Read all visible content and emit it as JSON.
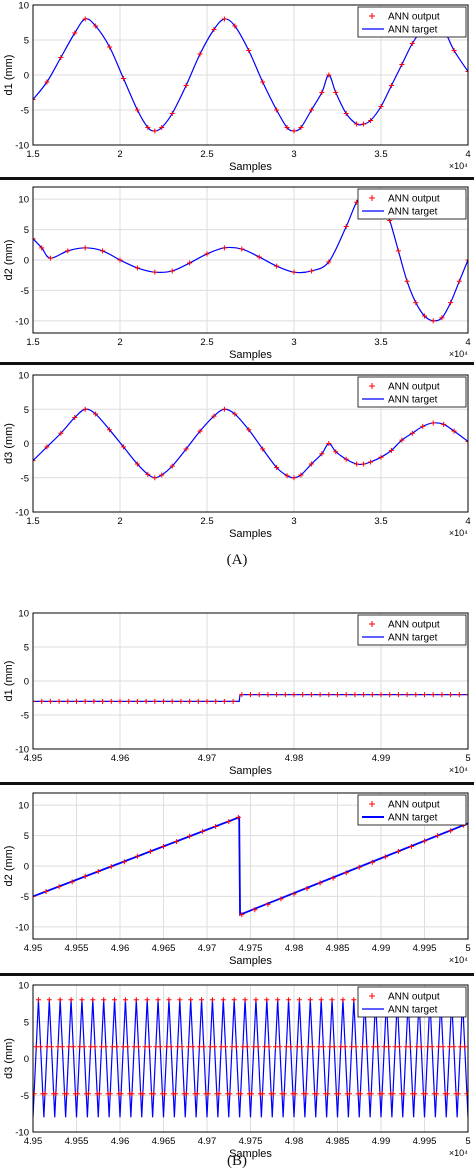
{
  "captions": {
    "a": "(A)",
    "b": "(B)"
  },
  "legend": {
    "output_label": "ANN output",
    "target_label": "ANN target"
  },
  "colors": {
    "output": "#ff0000",
    "target": "#0000ff",
    "grid": "#dedede",
    "axis": "#000000"
  },
  "chart_data": [
    {
      "type": "line",
      "xlabel": "Samples",
      "ylabel": "d1 (mm)",
      "xlim": [
        15000,
        40000
      ],
      "ylim": [
        -10,
        10
      ],
      "xticks": [
        "1.5",
        "2",
        "2.5",
        "3",
        "3.5",
        "4"
      ],
      "yticks": [
        "10",
        "5",
        "0",
        "-5",
        "-10"
      ],
      "x_exponent": "×10⁴",
      "legend_position": "top-right",
      "grid": true,
      "series": [
        {
          "name": "ANN target",
          "x": [
            15000,
            15800,
            16600,
            17400,
            18000,
            18600,
            19400,
            20200,
            21000,
            21600,
            22000,
            22400,
            23000,
            23800,
            24600,
            25400,
            26000,
            26600,
            27400,
            28200,
            29000,
            29600,
            30000,
            30400,
            31000,
            31600,
            32000,
            32400,
            33000,
            33600,
            34000,
            34400,
            35000,
            35600,
            36200,
            36800,
            37400,
            38000,
            38600,
            39200,
            40000
          ],
          "y": [
            -3.5,
            -1.0,
            2.5,
            6.0,
            8.0,
            7.0,
            4.0,
            -0.5,
            -5.0,
            -7.5,
            -8.0,
            -7.5,
            -5.5,
            -1.5,
            3.0,
            6.5,
            8.0,
            7.0,
            3.5,
            -1.0,
            -5.0,
            -7.5,
            -8.0,
            -7.5,
            -5.0,
            -2.5,
            0.0,
            -2.5,
            -5.5,
            -7.0,
            -7.0,
            -6.5,
            -4.5,
            -1.5,
            1.5,
            4.5,
            6.5,
            7.5,
            6.5,
            3.5,
            0.5
          ]
        },
        {
          "name": "ANN output",
          "x": [
            15000,
            15800,
            16600,
            17400,
            18000,
            18600,
            19400,
            20200,
            21000,
            21600,
            22000,
            22400,
            23000,
            23800,
            24600,
            25400,
            26000,
            26600,
            27400,
            28200,
            29000,
            29600,
            30000,
            30400,
            31000,
            31600,
            32000,
            32400,
            33000,
            33600,
            34000,
            34400,
            35000,
            35600,
            36200,
            36800,
            37400,
            38000,
            38600,
            39200,
            40000
          ],
          "y": [
            -3.5,
            -1.0,
            2.5,
            6.0,
            8.0,
            7.0,
            4.0,
            -0.5,
            -5.0,
            -7.5,
            -8.0,
            -7.5,
            -5.5,
            -1.5,
            3.0,
            6.5,
            8.0,
            7.0,
            3.5,
            -1.0,
            -5.0,
            -7.5,
            -8.0,
            -7.5,
            -5.0,
            -2.5,
            0.0,
            -2.5,
            -5.5,
            -7.0,
            -7.0,
            -6.5,
            -4.5,
            -1.5,
            1.5,
            4.5,
            6.5,
            7.5,
            6.5,
            3.5,
            0.5
          ]
        }
      ]
    },
    {
      "type": "line",
      "xlabel": "Samples",
      "ylabel": "d2 (mm)",
      "xlim": [
        15000,
        40000
      ],
      "ylim": [
        -12,
        12
      ],
      "xticks": [
        "1.5",
        "2",
        "2.5",
        "3",
        "3.5",
        "4"
      ],
      "yticks": [
        "10",
        "5",
        "0",
        "-5",
        "-10"
      ],
      "x_exponent": "×10⁴",
      "legend_position": "top-right",
      "grid": true,
      "series": [
        {
          "name": "ANN target",
          "x": [
            15000,
            15500,
            16000,
            17000,
            18000,
            19000,
            20000,
            21000,
            22000,
            23000,
            24000,
            25000,
            26000,
            27000,
            28000,
            29000,
            30000,
            31000,
            32000,
            33000,
            33600,
            34000,
            35000,
            35500,
            36000,
            36500,
            37000,
            37500,
            38000,
            38500,
            39000,
            39500,
            40000
          ],
          "y": [
            3.5,
            2.0,
            0.3,
            1.5,
            2.0,
            1.5,
            0.0,
            -1.3,
            -2.0,
            -1.8,
            -0.5,
            1.0,
            2.0,
            1.8,
            0.5,
            -1.0,
            -2.0,
            -1.8,
            -0.3,
            5.5,
            9.5,
            10.0,
            10.0,
            6.5,
            1.5,
            -3.5,
            -7.0,
            -9.2,
            -10.0,
            -9.5,
            -7.0,
            -3.5,
            0.0
          ]
        },
        {
          "name": "ANN output",
          "x": [
            15000,
            15500,
            16000,
            17000,
            18000,
            19000,
            20000,
            21000,
            22000,
            23000,
            24000,
            25000,
            26000,
            27000,
            28000,
            29000,
            30000,
            31000,
            32000,
            33000,
            33600,
            34000,
            35000,
            35500,
            36000,
            36500,
            37000,
            37500,
            38000,
            38500,
            39000,
            39500,
            40000
          ],
          "y": [
            3.5,
            2.0,
            0.3,
            1.5,
            2.0,
            1.5,
            0.0,
            -1.3,
            -2.0,
            -1.8,
            -0.5,
            1.0,
            2.0,
            1.8,
            0.5,
            -1.0,
            -2.0,
            -1.8,
            -0.3,
            5.5,
            9.5,
            10.0,
            10.0,
            6.5,
            1.5,
            -3.5,
            -7.0,
            -9.2,
            -10.0,
            -9.5,
            -7.0,
            -3.5,
            0.0
          ]
        }
      ]
    },
    {
      "type": "line",
      "xlabel": "Samples",
      "ylabel": "d3 (mm)",
      "xlim": [
        15000,
        40000
      ],
      "ylim": [
        -10,
        10
      ],
      "xticks": [
        "1.5",
        "2",
        "2.5",
        "3",
        "3.5",
        "4"
      ],
      "yticks": [
        "10",
        "5",
        "0",
        "-5",
        "-10"
      ],
      "x_exponent": "×10⁴",
      "legend_position": "top-right",
      "grid": true,
      "series": [
        {
          "name": "ANN  target",
          "x": [
            15000,
            15800,
            16600,
            17400,
            18000,
            18600,
            19400,
            20200,
            21000,
            21600,
            22000,
            22400,
            23000,
            23800,
            24600,
            25400,
            26000,
            26600,
            27400,
            28200,
            29000,
            29600,
            30000,
            30400,
            31000,
            31600,
            32000,
            32400,
            33000,
            33600,
            34000,
            34400,
            35000,
            35600,
            36200,
            36800,
            37400,
            38000,
            38600,
            39200,
            40000
          ],
          "y": [
            -2.5,
            -0.5,
            1.5,
            3.8,
            5.0,
            4.3,
            2.0,
            -0.5,
            -3.0,
            -4.5,
            -5.0,
            -4.6,
            -3.3,
            -0.8,
            1.8,
            4.0,
            5.0,
            4.3,
            2.0,
            -0.8,
            -3.5,
            -4.7,
            -5.0,
            -4.6,
            -3.0,
            -1.5,
            0.0,
            -1.2,
            -2.3,
            -3.0,
            -3.0,
            -2.7,
            -2.0,
            -1.0,
            0.5,
            1.5,
            2.5,
            3.0,
            2.8,
            1.8,
            0.3
          ]
        },
        {
          "name": "ANN output",
          "x": [
            15000,
            15800,
            16600,
            17400,
            18000,
            18600,
            19400,
            20200,
            21000,
            21600,
            22000,
            22400,
            23000,
            23800,
            24600,
            25400,
            26000,
            26600,
            27400,
            28200,
            29000,
            29600,
            30000,
            30400,
            31000,
            31600,
            32000,
            32400,
            33000,
            33600,
            34000,
            34400,
            35000,
            35600,
            36200,
            36800,
            37400,
            38000,
            38600,
            39200,
            40000
          ],
          "y": [
            -2.5,
            -0.5,
            1.5,
            3.8,
            5.0,
            4.3,
            2.0,
            -0.5,
            -3.0,
            -4.5,
            -5.0,
            -4.6,
            -3.3,
            -0.8,
            1.8,
            4.0,
            5.0,
            4.3,
            2.0,
            -0.8,
            -3.5,
            -4.7,
            -5.0,
            -4.6,
            -3.0,
            -1.5,
            0.0,
            -1.2,
            -2.3,
            -3.0,
            -3.0,
            -2.7,
            -2.0,
            -1.0,
            0.5,
            1.5,
            2.5,
            3.0,
            2.8,
            1.8,
            0.3
          ]
        }
      ]
    },
    {
      "type": "line",
      "xlabel": "Samples",
      "ylabel": "d1 (mm)",
      "xlim": [
        49500,
        50000
      ],
      "ylim": [
        -10,
        10
      ],
      "xticks": [
        "4.95",
        "4.96",
        "4.97",
        "4.98",
        "4.99",
        "5"
      ],
      "yticks": [
        "10",
        "5",
        "0",
        "-5",
        "-10"
      ],
      "x_exponent": "×10⁴",
      "legend_position": "top-right",
      "grid": true,
      "series": [
        {
          "name": "ANN target",
          "x": [
            49500,
            49737,
            49738,
            50000
          ],
          "y": [
            -3,
            -3,
            -2,
            -2
          ]
        },
        {
          "name": "ANN output",
          "x": [
            49500,
            49510,
            49520,
            49530,
            49540,
            49550,
            49560,
            49570,
            49580,
            49590,
            49600,
            49610,
            49620,
            49630,
            49640,
            49650,
            49660,
            49670,
            49680,
            49690,
            49700,
            49710,
            49720,
            49730,
            49740,
            49750,
            49760,
            49770,
            49780,
            49790,
            49800,
            49810,
            49820,
            49830,
            49840,
            49850,
            49860,
            49870,
            49880,
            49890,
            49900,
            49910,
            49920,
            49930,
            49940,
            49950,
            49960,
            49970,
            49980,
            49990,
            50000
          ],
          "y": [
            -3,
            -3,
            -3,
            -3,
            -3,
            -3,
            -3,
            -3,
            -3,
            -3,
            -3,
            -3,
            -3,
            -3,
            -3,
            -3,
            -3,
            -3,
            -3,
            -3,
            -3,
            -3,
            -3,
            -3,
            -2,
            -2,
            -2,
            -2,
            -2,
            -2,
            -2,
            -2,
            -2,
            -2,
            -2,
            -2,
            -2,
            -2,
            -2,
            -2,
            -2,
            -2,
            -2,
            -2,
            -2,
            -2,
            -2,
            -2,
            -2,
            -2,
            -2
          ]
        }
      ]
    },
    {
      "type": "line",
      "xlabel": "Samples",
      "ylabel": "d2 (mm)",
      "xlim": [
        49500,
        50000
      ],
      "ylim": [
        -12,
        12
      ],
      "xticks": [
        "4.95",
        "4.955",
        "4.96",
        "4.965",
        "4.97",
        "4.975",
        "4.98",
        "4.985",
        "4.99",
        "4.995",
        "5"
      ],
      "yticks": [
        "10",
        "5",
        "0",
        "-5",
        "-10"
      ],
      "x_exponent": "×10⁴",
      "legend_position": "top-right",
      "grid": true,
      "series": [
        {
          "name": "ANN target",
          "x": [
            49500,
            49737,
            49738,
            50000
          ],
          "y": [
            -5,
            8,
            -8,
            7
          ]
        },
        {
          "name": "ANN output",
          "x": [
            49500,
            49515,
            49530,
            49545,
            49560,
            49575,
            49590,
            49605,
            49620,
            49635,
            49650,
            49665,
            49680,
            49695,
            49710,
            49725,
            49736,
            49740,
            49755,
            49770,
            49785,
            49800,
            49815,
            49830,
            49845,
            49860,
            49875,
            49890,
            49905,
            49920,
            49935,
            49950,
            49965,
            49980,
            49995
          ],
          "y": [
            -5.0,
            -4.2,
            -3.4,
            -2.6,
            -1.7,
            -0.9,
            -0.1,
            0.7,
            1.6,
            2.4,
            3.2,
            4.0,
            4.9,
            5.7,
            6.5,
            7.3,
            8.0,
            -8.0,
            -7.2,
            -6.3,
            -5.4,
            -4.6,
            -3.7,
            -2.8,
            -2.0,
            -1.1,
            -0.2,
            0.6,
            1.5,
            2.4,
            3.2,
            4.1,
            5.0,
            5.8,
            6.7
          ]
        }
      ]
    },
    {
      "type": "line",
      "xlabel": "Samples",
      "ylabel": "d3 (mm)",
      "xlim": [
        49500,
        50000
      ],
      "ylim": [
        -10,
        10
      ],
      "xticks": [
        "4.95",
        "4.955",
        "4.96",
        "4.965",
        "4.97",
        "4.975",
        "4.98",
        "4.985",
        "4.99",
        "4.995",
        "5"
      ],
      "yticks": [
        "10",
        "5",
        "0",
        "-5",
        "-10"
      ],
      "x_exponent": "×10⁴",
      "legend_position": "top-right",
      "grid": true,
      "series": [
        {
          "name": "ANN  target",
          "pattern": "sawtooth",
          "amplitude": 8,
          "period_samples": 12.5,
          "cycles": 40
        },
        {
          "name": "ANN output",
          "pattern": "sawtooth samples",
          "amplitude": 8,
          "period_samples": 12.5,
          "samples_per_cycle": 5
        }
      ]
    }
  ]
}
